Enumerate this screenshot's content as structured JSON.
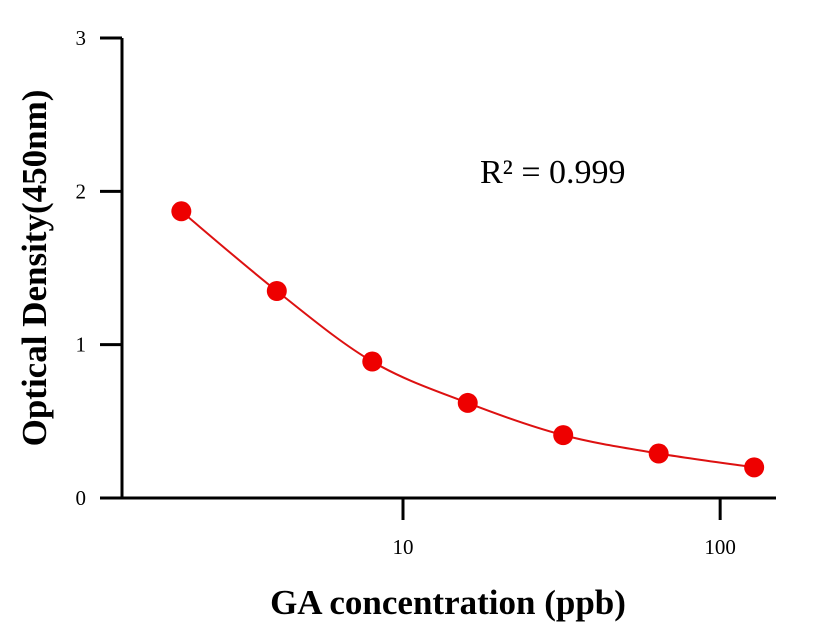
{
  "chart_data": {
    "type": "scatter",
    "title": "",
    "xlabel": "GA concentration (ppb)",
    "ylabel": "Optical Density(450nm)",
    "x_scale": "log",
    "xlim": [
      1.3,
      150
    ],
    "ylim": [
      0,
      3
    ],
    "x_ticks": [
      10,
      100
    ],
    "x_tick_labels": [
      "10",
      "100"
    ],
    "y_ticks": [
      0,
      1,
      2,
      3
    ],
    "y_tick_labels": [
      "0",
      "1",
      "2",
      "3"
    ],
    "grid": false,
    "legend": "none",
    "series": [
      {
        "x": [
          2,
          4,
          8,
          16,
          32,
          64,
          128
        ],
        "y": [
          1.87,
          1.35,
          0.89,
          0.62,
          0.41,
          0.29,
          0.2
        ],
        "fit_curve": true
      }
    ],
    "annotations": [
      {
        "text": "R² = 0.999"
      }
    ],
    "colors": {
      "points": "#ee0000",
      "curve": "#dd1111",
      "axes": "#000000"
    }
  }
}
